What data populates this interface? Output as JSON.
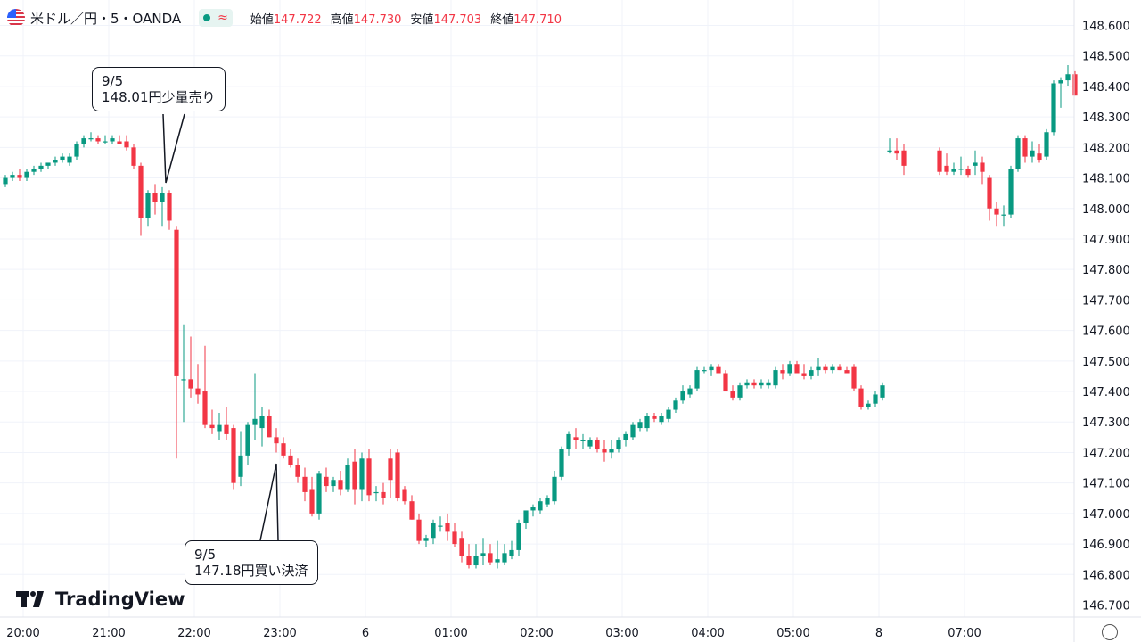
{
  "header": {
    "symbol": "米ドル／円・5・OANDA",
    "status_icon": "market-open-dot",
    "approx_icon": "≈",
    "ohlc": [
      {
        "label": "始値",
        "value": "147.722"
      },
      {
        "label": "高値",
        "value": "147.730"
      },
      {
        "label": "安値",
        "value": "147.703"
      },
      {
        "label": "終値",
        "value": "147.710"
      }
    ]
  },
  "callouts": [
    {
      "line1": "9/5",
      "line2": "148.01円少量売り"
    },
    {
      "line1": "9/5",
      "line2": "147.18円買い決済"
    }
  ],
  "logo": {
    "text": "TradingView"
  },
  "colors": {
    "up": "#089981",
    "down": "#f23645",
    "grid": "#f0f3fa",
    "axis_text": "#131722"
  },
  "chart_data": {
    "type": "candlestick",
    "y_ticks": [
      "146.700",
      "146.800",
      "146.900",
      "147.000",
      "147.100",
      "147.200",
      "147.300",
      "147.400",
      "147.500",
      "147.600",
      "147.700",
      "147.800",
      "147.900",
      "148.000",
      "148.100",
      "148.200",
      "148.300",
      "148.400",
      "148.500",
      "148.600"
    ],
    "ylim": [
      146.67,
      148.63
    ],
    "x_ticks": [
      {
        "label": "20:00",
        "t": 2.5
      },
      {
        "label": "21:00",
        "t": 14.5
      },
      {
        "label": "22:00",
        "t": 26.5
      },
      {
        "label": "23:00",
        "t": 38.5
      },
      {
        "label": "6",
        "t": 50.5
      },
      {
        "label": "01:00",
        "t": 62.5
      },
      {
        "label": "02:00",
        "t": 74.5
      },
      {
        "label": "03:00",
        "t": 86.5
      },
      {
        "label": "04:00",
        "t": 98.5
      },
      {
        "label": "05:00",
        "t": 110.5
      },
      {
        "label": "8",
        "t": 122.5
      },
      {
        "label": "07:00",
        "t": 134.5
      }
    ],
    "candles": [
      {
        "o": 148.08,
        "h": 148.11,
        "l": 148.07,
        "c": 148.1
      },
      {
        "o": 148.1,
        "h": 148.12,
        "l": 148.09,
        "c": 148.11
      },
      {
        "o": 148.11,
        "h": 148.13,
        "l": 148.09,
        "c": 148.1
      },
      {
        "o": 148.1,
        "h": 148.13,
        "l": 148.09,
        "c": 148.12
      },
      {
        "o": 148.12,
        "h": 148.14,
        "l": 148.11,
        "c": 148.13
      },
      {
        "o": 148.13,
        "h": 148.15,
        "l": 148.12,
        "c": 148.14
      },
      {
        "o": 148.14,
        "h": 148.15,
        "l": 148.13,
        "c": 148.15
      },
      {
        "o": 148.15,
        "h": 148.17,
        "l": 148.14,
        "c": 148.16
      },
      {
        "o": 148.16,
        "h": 148.18,
        "l": 148.15,
        "c": 148.17
      },
      {
        "o": 148.15,
        "h": 148.18,
        "l": 148.14,
        "c": 148.17
      },
      {
        "o": 148.17,
        "h": 148.22,
        "l": 148.16,
        "c": 148.21
      },
      {
        "o": 148.21,
        "h": 148.24,
        "l": 148.2,
        "c": 148.23
      },
      {
        "o": 148.23,
        "h": 148.25,
        "l": 148.22,
        "c": 148.23
      },
      {
        "o": 148.23,
        "h": 148.24,
        "l": 148.21,
        "c": 148.22
      },
      {
        "o": 148.22,
        "h": 148.24,
        "l": 148.21,
        "c": 148.22
      },
      {
        "o": 148.22,
        "h": 148.24,
        "l": 148.21,
        "c": 148.23
      },
      {
        "o": 148.22,
        "h": 148.24,
        "l": 148.21,
        "c": 148.21
      },
      {
        "o": 148.22,
        "h": 148.24,
        "l": 148.19,
        "c": 148.2
      },
      {
        "o": 148.2,
        "h": 148.21,
        "l": 148.13,
        "c": 148.14
      },
      {
        "o": 148.14,
        "h": 148.15,
        "l": 147.91,
        "c": 147.97
      },
      {
        "o": 147.97,
        "h": 148.06,
        "l": 147.94,
        "c": 148.05
      },
      {
        "o": 148.05,
        "h": 148.08,
        "l": 147.98,
        "c": 148.02
      },
      {
        "o": 148.02,
        "h": 148.07,
        "l": 147.94,
        "c": 148.05
      },
      {
        "o": 148.05,
        "h": 148.06,
        "l": 147.93,
        "c": 147.96
      },
      {
        "o": 147.93,
        "h": 147.94,
        "l": 147.18,
        "c": 147.45
      },
      {
        "o": 147.44,
        "h": 147.62,
        "l": 147.3,
        "c": 147.44
      },
      {
        "o": 147.44,
        "h": 147.58,
        "l": 147.38,
        "c": 147.41
      },
      {
        "o": 147.41,
        "h": 147.49,
        "l": 147.36,
        "c": 147.39
      },
      {
        "o": 147.4,
        "h": 147.55,
        "l": 147.28,
        "c": 147.29
      },
      {
        "o": 147.29,
        "h": 147.34,
        "l": 147.26,
        "c": 147.28
      },
      {
        "o": 147.27,
        "h": 147.33,
        "l": 147.24,
        "c": 147.29
      },
      {
        "o": 147.29,
        "h": 147.35,
        "l": 147.24,
        "c": 147.26
      },
      {
        "o": 147.28,
        "h": 147.29,
        "l": 147.08,
        "c": 147.1
      },
      {
        "o": 147.12,
        "h": 147.27,
        "l": 147.09,
        "c": 147.19
      },
      {
        "o": 147.19,
        "h": 147.3,
        "l": 147.16,
        "c": 147.29
      },
      {
        "o": 147.29,
        "h": 147.46,
        "l": 147.24,
        "c": 147.31
      },
      {
        "o": 147.28,
        "h": 147.35,
        "l": 147.22,
        "c": 147.32
      },
      {
        "o": 147.32,
        "h": 147.34,
        "l": 147.25,
        "c": 147.25
      },
      {
        "o": 147.25,
        "h": 147.28,
        "l": 147.2,
        "c": 147.23
      },
      {
        "o": 147.23,
        "h": 147.25,
        "l": 147.18,
        "c": 147.19
      },
      {
        "o": 147.19,
        "h": 147.21,
        "l": 147.15,
        "c": 147.16
      },
      {
        "o": 147.16,
        "h": 147.18,
        "l": 147.1,
        "c": 147.12
      },
      {
        "o": 147.12,
        "h": 147.15,
        "l": 147.04,
        "c": 147.07
      },
      {
        "o": 147.08,
        "h": 147.12,
        "l": 146.99,
        "c": 147.0
      },
      {
        "o": 147.0,
        "h": 147.14,
        "l": 146.98,
        "c": 147.13
      },
      {
        "o": 147.12,
        "h": 147.15,
        "l": 147.07,
        "c": 147.09
      },
      {
        "o": 147.09,
        "h": 147.12,
        "l": 147.07,
        "c": 147.11
      },
      {
        "o": 147.11,
        "h": 147.14,
        "l": 147.06,
        "c": 147.08
      },
      {
        "o": 147.08,
        "h": 147.18,
        "l": 147.07,
        "c": 147.16
      },
      {
        "o": 147.17,
        "h": 147.21,
        "l": 147.03,
        "c": 147.08
      },
      {
        "o": 147.08,
        "h": 147.2,
        "l": 147.04,
        "c": 147.18
      },
      {
        "o": 147.18,
        "h": 147.21,
        "l": 147.04,
        "c": 147.06
      },
      {
        "o": 147.07,
        "h": 147.09,
        "l": 147.04,
        "c": 147.07
      },
      {
        "o": 147.07,
        "h": 147.1,
        "l": 147.03,
        "c": 147.05
      },
      {
        "o": 147.18,
        "h": 147.21,
        "l": 147.05,
        "c": 147.11
      },
      {
        "o": 147.2,
        "h": 147.21,
        "l": 147.04,
        "c": 147.05
      },
      {
        "o": 147.08,
        "h": 147.09,
        "l": 147.03,
        "c": 147.04
      },
      {
        "o": 147.04,
        "h": 147.06,
        "l": 146.98,
        "c": 146.98
      },
      {
        "o": 146.98,
        "h": 147.0,
        "l": 146.9,
        "c": 146.91
      },
      {
        "o": 146.91,
        "h": 146.93,
        "l": 146.89,
        "c": 146.92
      },
      {
        "o": 146.92,
        "h": 146.98,
        "l": 146.9,
        "c": 146.97
      },
      {
        "o": 146.96,
        "h": 146.99,
        "l": 146.94,
        "c": 146.96
      },
      {
        "o": 146.97,
        "h": 147.0,
        "l": 146.91,
        "c": 146.94
      },
      {
        "o": 146.94,
        "h": 146.97,
        "l": 146.89,
        "c": 146.9
      },
      {
        "o": 146.92,
        "h": 146.94,
        "l": 146.84,
        "c": 146.86
      },
      {
        "o": 146.86,
        "h": 146.9,
        "l": 146.82,
        "c": 146.83
      },
      {
        "o": 146.83,
        "h": 146.9,
        "l": 146.82,
        "c": 146.86
      },
      {
        "o": 146.86,
        "h": 146.92,
        "l": 146.83,
        "c": 146.87
      },
      {
        "o": 146.87,
        "h": 146.9,
        "l": 146.83,
        "c": 146.84
      },
      {
        "o": 146.84,
        "h": 146.91,
        "l": 146.82,
        "c": 146.85
      },
      {
        "o": 146.84,
        "h": 146.9,
        "l": 146.83,
        "c": 146.87
      },
      {
        "o": 146.86,
        "h": 146.91,
        "l": 146.85,
        "c": 146.88
      },
      {
        "o": 146.88,
        "h": 146.98,
        "l": 146.86,
        "c": 146.97
      },
      {
        "o": 146.97,
        "h": 147.01,
        "l": 146.95,
        "c": 147.01
      },
      {
        "o": 147.01,
        "h": 147.03,
        "l": 146.99,
        "c": 147.02
      },
      {
        "o": 147.01,
        "h": 147.05,
        "l": 147.0,
        "c": 147.04
      },
      {
        "o": 147.03,
        "h": 147.06,
        "l": 147.02,
        "c": 147.05
      },
      {
        "o": 147.04,
        "h": 147.14,
        "l": 147.03,
        "c": 147.12
      },
      {
        "o": 147.12,
        "h": 147.22,
        "l": 147.11,
        "c": 147.21
      },
      {
        "o": 147.21,
        "h": 147.27,
        "l": 147.19,
        "c": 147.26
      },
      {
        "o": 147.25,
        "h": 147.28,
        "l": 147.21,
        "c": 147.24
      },
      {
        "o": 147.24,
        "h": 147.26,
        "l": 147.21,
        "c": 147.24
      },
      {
        "o": 147.22,
        "h": 147.25,
        "l": 147.21,
        "c": 147.24
      },
      {
        "o": 147.24,
        "h": 147.25,
        "l": 147.2,
        "c": 147.21
      },
      {
        "o": 147.21,
        "h": 147.24,
        "l": 147.17,
        "c": 147.2
      },
      {
        "o": 147.2,
        "h": 147.24,
        "l": 147.18,
        "c": 147.21
      },
      {
        "o": 147.21,
        "h": 147.25,
        "l": 147.2,
        "c": 147.24
      },
      {
        "o": 147.24,
        "h": 147.27,
        "l": 147.22,
        "c": 147.26
      },
      {
        "o": 147.25,
        "h": 147.3,
        "l": 147.24,
        "c": 147.29
      },
      {
        "o": 147.28,
        "h": 147.31,
        "l": 147.27,
        "c": 147.3
      },
      {
        "o": 147.28,
        "h": 147.33,
        "l": 147.27,
        "c": 147.32
      },
      {
        "o": 147.32,
        "h": 147.33,
        "l": 147.3,
        "c": 147.31
      },
      {
        "o": 147.3,
        "h": 147.33,
        "l": 147.29,
        "c": 147.32
      },
      {
        "o": 147.31,
        "h": 147.35,
        "l": 147.3,
        "c": 147.34
      },
      {
        "o": 147.34,
        "h": 147.38,
        "l": 147.33,
        "c": 147.37
      },
      {
        "o": 147.37,
        "h": 147.42,
        "l": 147.36,
        "c": 147.4
      },
      {
        "o": 147.39,
        "h": 147.42,
        "l": 147.38,
        "c": 147.41
      },
      {
        "o": 147.41,
        "h": 147.48,
        "l": 147.4,
        "c": 147.47
      },
      {
        "o": 147.47,
        "h": 147.48,
        "l": 147.46,
        "c": 147.47
      },
      {
        "o": 147.47,
        "h": 147.49,
        "l": 147.45,
        "c": 147.48
      },
      {
        "o": 147.48,
        "h": 147.49,
        "l": 147.46,
        "c": 147.46
      },
      {
        "o": 147.46,
        "h": 147.47,
        "l": 147.4,
        "c": 147.4
      },
      {
        "o": 147.4,
        "h": 147.42,
        "l": 147.37,
        "c": 147.38
      },
      {
        "o": 147.38,
        "h": 147.43,
        "l": 147.37,
        "c": 147.42
      },
      {
        "o": 147.42,
        "h": 147.44,
        "l": 147.41,
        "c": 147.43
      },
      {
        "o": 147.43,
        "h": 147.44,
        "l": 147.41,
        "c": 147.42
      },
      {
        "o": 147.42,
        "h": 147.44,
        "l": 147.41,
        "c": 147.43
      },
      {
        "o": 147.42,
        "h": 147.44,
        "l": 147.41,
        "c": 147.43
      },
      {
        "o": 147.42,
        "h": 147.48,
        "l": 147.41,
        "c": 147.47
      },
      {
        "o": 147.47,
        "h": 147.49,
        "l": 147.44,
        "c": 147.46
      },
      {
        "o": 147.46,
        "h": 147.5,
        "l": 147.45,
        "c": 147.49
      },
      {
        "o": 147.49,
        "h": 147.5,
        "l": 147.46,
        "c": 147.46
      },
      {
        "o": 147.46,
        "h": 147.49,
        "l": 147.44,
        "c": 147.45
      },
      {
        "o": 147.45,
        "h": 147.48,
        "l": 147.44,
        "c": 147.47
      },
      {
        "o": 147.47,
        "h": 147.51,
        "l": 147.45,
        "c": 147.48
      },
      {
        "o": 147.48,
        "h": 147.49,
        "l": 147.46,
        "c": 147.47
      },
      {
        "o": 147.47,
        "h": 147.49,
        "l": 147.46,
        "c": 147.48
      },
      {
        "o": 147.48,
        "h": 147.49,
        "l": 147.47,
        "c": 147.47
      },
      {
        "o": 147.47,
        "h": 147.48,
        "l": 147.46,
        "c": 147.46
      },
      {
        "o": 147.48,
        "h": 147.49,
        "l": 147.4,
        "c": 147.41
      },
      {
        "o": 147.41,
        "h": 147.42,
        "l": 147.34,
        "c": 147.35
      },
      {
        "o": 147.35,
        "h": 147.37,
        "l": 147.34,
        "c": 147.36
      },
      {
        "o": 147.36,
        "h": 147.4,
        "l": 147.35,
        "c": 147.39
      },
      {
        "o": 147.38,
        "h": 147.43,
        "l": 147.37,
        "c": 147.42
      },
      {
        "o": 148.19,
        "h": 148.23,
        "l": 148.18,
        "c": 148.19
      },
      {
        "o": 148.19,
        "h": 148.23,
        "l": 148.16,
        "c": 148.18
      },
      {
        "o": 148.19,
        "h": 148.21,
        "l": 148.11,
        "c": 148.14
      },
      {
        "o": 148.19,
        "h": 148.2,
        "l": 148.11,
        "c": 148.12
      },
      {
        "o": 148.14,
        "h": 148.18,
        "l": 148.11,
        "c": 148.12
      },
      {
        "o": 148.12,
        "h": 148.15,
        "l": 148.11,
        "c": 148.13
      },
      {
        "o": 148.13,
        "h": 148.17,
        "l": 148.11,
        "c": 148.13
      },
      {
        "o": 148.13,
        "h": 148.14,
        "l": 148.1,
        "c": 148.11
      },
      {
        "o": 148.14,
        "h": 148.19,
        "l": 148.11,
        "c": 148.15
      },
      {
        "o": 148.15,
        "h": 148.17,
        "l": 148.08,
        "c": 148.12
      },
      {
        "o": 148.1,
        "h": 148.11,
        "l": 147.96,
        "c": 148.0
      },
      {
        "o": 148.0,
        "h": 148.02,
        "l": 147.94,
        "c": 147.98
      },
      {
        "o": 147.98,
        "h": 148.01,
        "l": 147.94,
        "c": 147.98
      },
      {
        "o": 147.98,
        "h": 148.14,
        "l": 147.97,
        "c": 148.13
      },
      {
        "o": 148.13,
        "h": 148.24,
        "l": 148.12,
        "c": 148.23
      },
      {
        "o": 148.23,
        "h": 148.24,
        "l": 148.15,
        "c": 148.17
      },
      {
        "o": 148.17,
        "h": 148.22,
        "l": 148.15,
        "c": 148.19
      },
      {
        "o": 148.18,
        "h": 148.21,
        "l": 148.15,
        "c": 148.16
      },
      {
        "o": 148.17,
        "h": 148.26,
        "l": 148.16,
        "c": 148.25
      },
      {
        "o": 148.25,
        "h": 148.42,
        "l": 148.24,
        "c": 148.41
      },
      {
        "o": 148.41,
        "h": 148.43,
        "l": 148.33,
        "c": 148.42
      },
      {
        "o": 148.42,
        "h": 148.47,
        "l": 148.4,
        "c": 148.44
      },
      {
        "o": 148.44,
        "h": 148.45,
        "l": 148.37,
        "c": 148.37
      }
    ]
  }
}
